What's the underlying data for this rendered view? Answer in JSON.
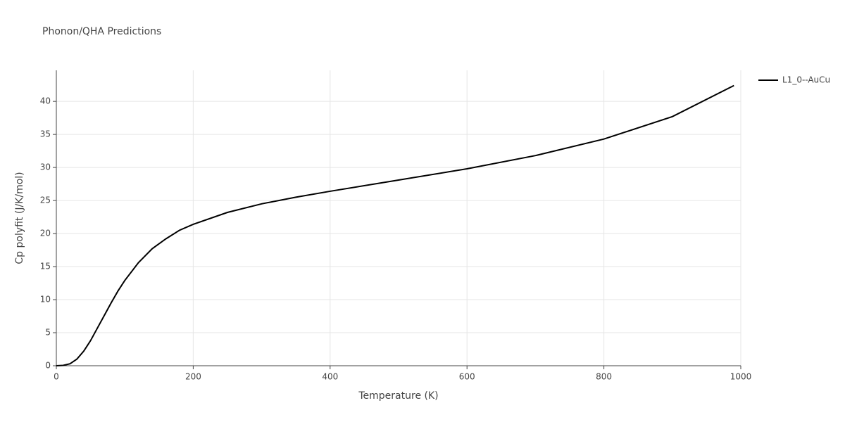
{
  "chart_data": {
    "type": "line",
    "title": "Phonon/QHA Predictions",
    "x_label": "Temperature (K)",
    "y_label": "Cp polyfit (J/K/mol)",
    "x": [
      0,
      10,
      20,
      30,
      40,
      50,
      60,
      70,
      80,
      90,
      100,
      120,
      140,
      160,
      180,
      200,
      250,
      300,
      350,
      400,
      500,
      600,
      700,
      800,
      900,
      990
    ],
    "series": [
      {
        "name": "L1_0--AuCu",
        "color": "#000000",
        "values": [
          0,
          0.05,
          0.3,
          1,
          2.2,
          3.8,
          5.7,
          7.6,
          9.5,
          11.3,
          12.9,
          15.6,
          17.7,
          19.2,
          20.5,
          21.4,
          23.2,
          24.5,
          25.5,
          26.4,
          28.1,
          29.8,
          31.8,
          34.3,
          37.7,
          42.4
        ]
      }
    ],
    "xlim": [
      0,
      1000
    ],
    "xticks": [
      0,
      200,
      400,
      600,
      800,
      1000
    ],
    "ylim": [
      0,
      44.7
    ],
    "yticks": [
      0,
      5,
      10,
      15,
      20,
      25,
      30,
      35,
      40
    ],
    "grid": true,
    "legend": "right"
  }
}
